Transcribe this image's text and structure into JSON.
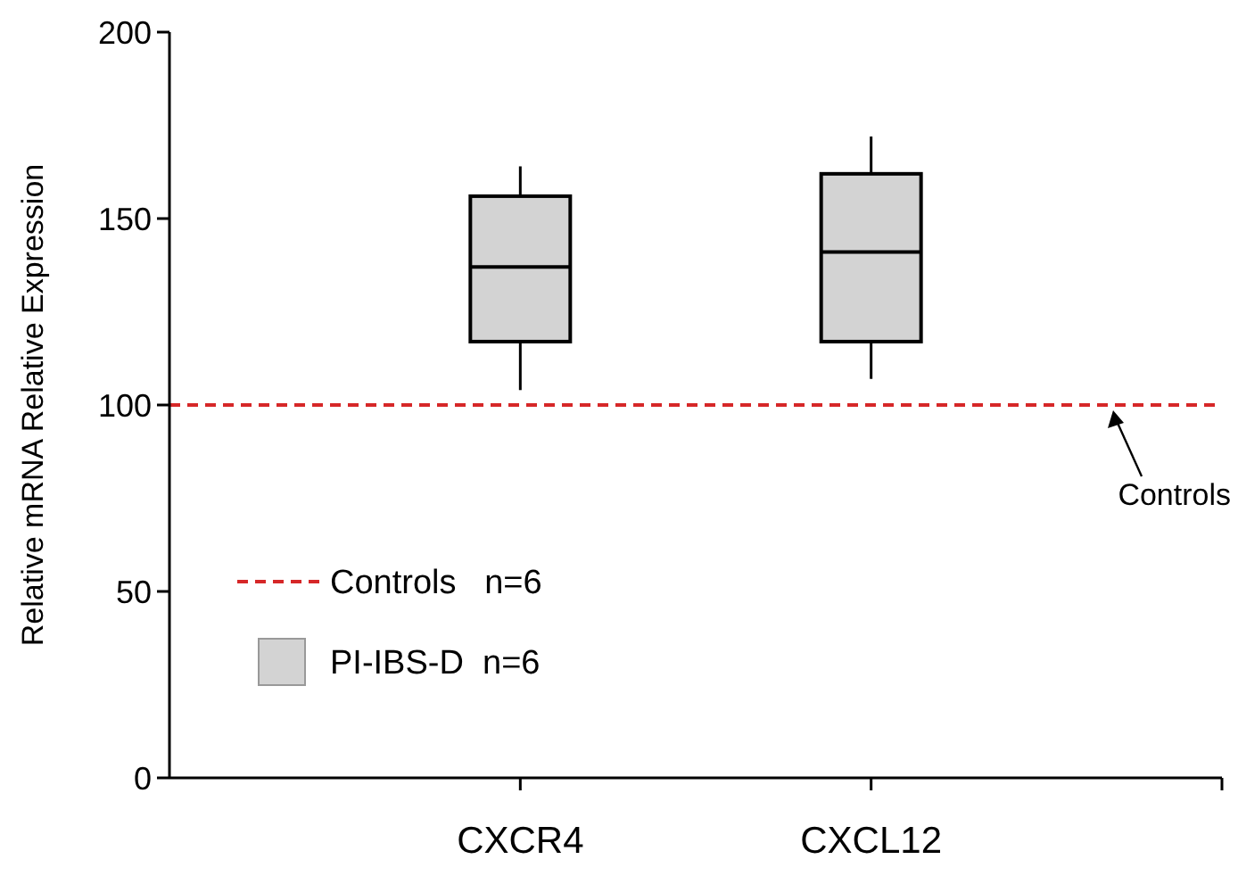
{
  "chart_data": {
    "type": "box",
    "ylabel": "Relative mRNA Relative Expression",
    "categories": [
      "CXCR4",
      "CXCL12"
    ],
    "series": [
      {
        "name": "PI-IBS-D  n=6",
        "color": "#d3d3d3",
        "boxes": [
          {
            "low": 104,
            "q1": 117,
            "median": 137,
            "q3": 156,
            "high": 164
          },
          {
            "low": 107,
            "q1": 117,
            "median": 141,
            "q3": 162,
            "high": 172
          }
        ]
      }
    ],
    "ylim": [
      0,
      200
    ],
    "yticks": [
      0,
      50,
      100,
      150,
      200
    ],
    "ref_lines": [
      {
        "axis": "y",
        "value": 100,
        "label": "Controls",
        "color": "#d62728",
        "line_style": "dashed"
      }
    ],
    "annotations": [
      "Controls   n=6"
    ],
    "legend": "bottom left",
    "grid": false
  }
}
